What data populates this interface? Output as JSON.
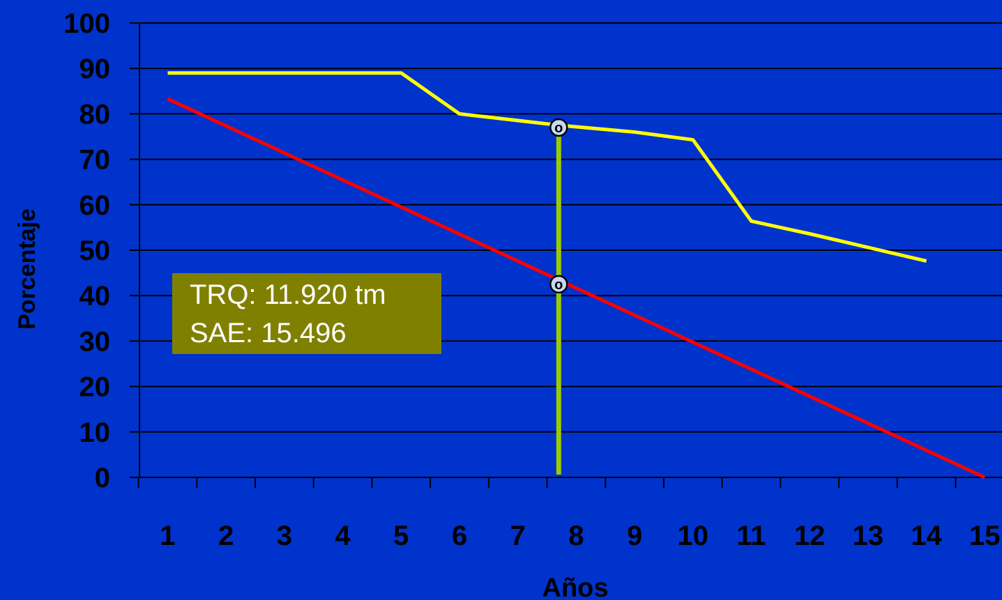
{
  "chart_data": {
    "type": "line",
    "xlabel": "Años",
    "ylabel": "Porcentaje",
    "x_ticks": [
      1,
      2,
      3,
      4,
      5,
      6,
      7,
      8,
      9,
      10,
      11,
      12,
      13,
      14,
      15
    ],
    "xlim": [
      0.5,
      15.5
    ],
    "ylim": [
      0,
      100
    ],
    "y_ticks": [
      0,
      10,
      20,
      30,
      40,
      50,
      60,
      70,
      80,
      90,
      100
    ],
    "grid": "horizontal",
    "series": [
      {
        "color": "#FFFF00",
        "points": [
          [
            1,
            89
          ],
          [
            5,
            89
          ],
          [
            6,
            80
          ],
          [
            7.7,
            77.5
          ],
          [
            9,
            76
          ],
          [
            10,
            74.3
          ],
          [
            11,
            56.4
          ],
          [
            12,
            53.6
          ],
          [
            13,
            50.6
          ],
          [
            14,
            47.6
          ]
        ]
      },
      {
        "color": "#FF0000",
        "points": [
          [
            1,
            83.3
          ],
          [
            15,
            0
          ]
        ]
      }
    ],
    "marker_line": {
      "x": 7.7,
      "color": "#99CC00"
    },
    "markers": [
      {
        "x": 7.7,
        "y": 77,
        "label": "o"
      },
      {
        "x": 7.7,
        "y": 42.5,
        "label": "o"
      }
    ],
    "annotation": {
      "lines": [
        "TRQ: 11.920 tm",
        "SAE: 15.496"
      ],
      "background": "#808000"
    }
  }
}
